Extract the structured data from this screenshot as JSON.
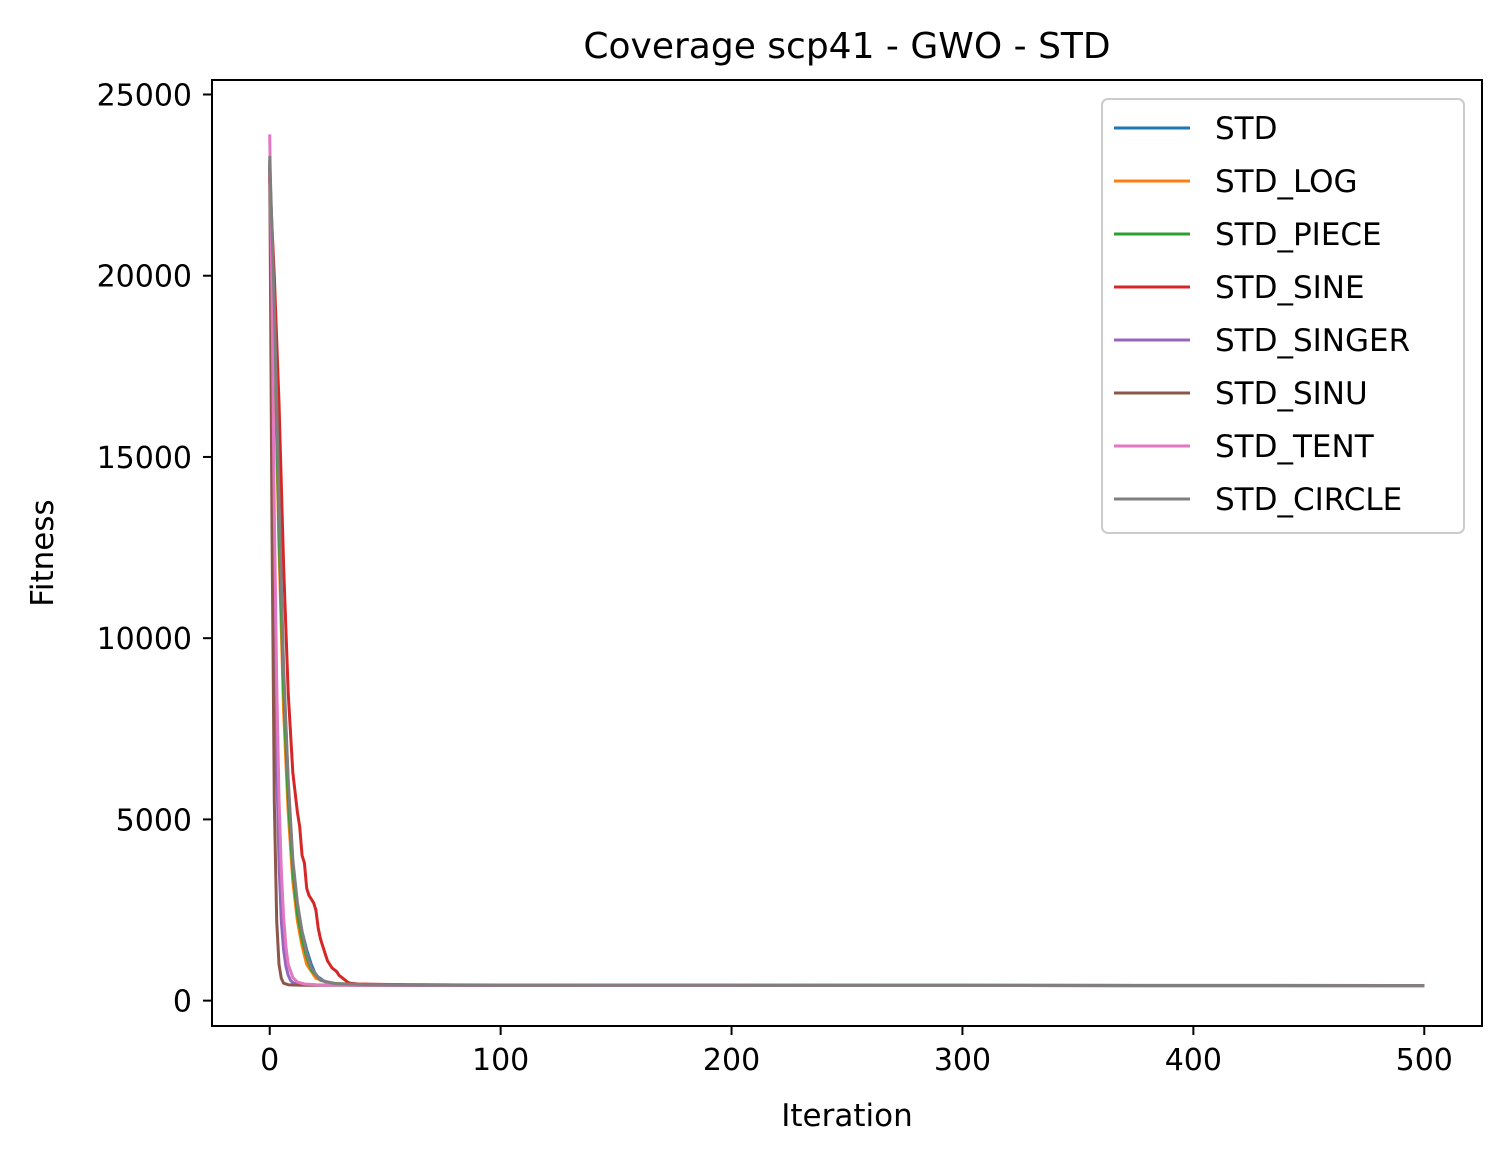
{
  "chart_data": {
    "type": "line",
    "title": "Coverage scp41 - GWO - STD",
    "xlabel": "Iteration",
    "ylabel": "Fitness",
    "xlim": [
      -25,
      525
    ],
    "ylim": [
      -700,
      25400
    ],
    "xticks": [
      0,
      100,
      200,
      300,
      400,
      500
    ],
    "yticks": [
      0,
      5000,
      10000,
      15000,
      20000,
      25000
    ],
    "legend_position": "top-right",
    "series": [
      {
        "name": "STD",
        "color": "#1f77b4",
        "x": [
          0,
          2,
          4,
          6,
          8,
          10,
          12,
          14,
          16,
          18,
          20,
          24,
          30,
          40,
          60,
          100,
          200,
          300,
          400,
          500
        ],
        "y": [
          23100,
          19000,
          13500,
          9000,
          6000,
          3800,
          2600,
          1900,
          1400,
          1000,
          700,
          520,
          460,
          440,
          430,
          425,
          420,
          418,
          416,
          415
        ]
      },
      {
        "name": "STD_LOG",
        "color": "#ff7f0e",
        "x": [
          0,
          2,
          4,
          6,
          8,
          10,
          12,
          14,
          16,
          20,
          26,
          35,
          60,
          100,
          200,
          300,
          400,
          500
        ],
        "y": [
          22900,
          18500,
          12500,
          8000,
          5200,
          3300,
          2200,
          1500,
          1000,
          620,
          480,
          450,
          435,
          428,
          422,
          420,
          418,
          417
        ]
      },
      {
        "name": "STD_PIECE",
        "color": "#2ca02c",
        "x": [
          0,
          2,
          4,
          6,
          8,
          10,
          12,
          14,
          16,
          18,
          22,
          28,
          40,
          60,
          100,
          200,
          300,
          400,
          500
        ],
        "y": [
          23000,
          18800,
          13000,
          8600,
          5600,
          3600,
          2400,
          1700,
          1200,
          850,
          560,
          470,
          445,
          435,
          428,
          422,
          419,
          417,
          416
        ]
      },
      {
        "name": "STD_SINE",
        "color": "#d62728",
        "x": [
          0,
          2,
          4,
          6,
          8,
          10,
          12,
          13,
          14,
          15,
          16,
          17,
          18,
          19,
          20,
          21,
          22,
          23,
          24,
          25,
          26,
          27,
          28,
          29,
          30,
          31,
          32,
          33,
          34,
          35,
          38,
          45,
          60,
          100,
          200,
          300,
          400,
          500
        ],
        "y": [
          22700,
          20000,
          16500,
          12000,
          8500,
          6300,
          5200,
          4800,
          4000,
          3800,
          3100,
          2900,
          2800,
          2700,
          2500,
          2000,
          1700,
          1500,
          1300,
          1100,
          1000,
          900,
          850,
          800,
          700,
          650,
          600,
          550,
          500,
          480,
          460,
          450,
          440,
          430,
          425,
          422,
          420,
          418
        ]
      },
      {
        "name": "STD_SINGER",
        "color": "#9467bd",
        "x": [
          0,
          1,
          2,
          3,
          4,
          5,
          6,
          7,
          8,
          9,
          10,
          12,
          15,
          20,
          30,
          60,
          100,
          200,
          300,
          400,
          500
        ],
        "y": [
          23000,
          17500,
          11000,
          6500,
          3800,
          2200,
          1400,
          950,
          700,
          560,
          500,
          460,
          445,
          435,
          430,
          425,
          422,
          420,
          418,
          416,
          415
        ]
      },
      {
        "name": "STD_SINU",
        "color": "#8c564b",
        "x": [
          0,
          1,
          2,
          3,
          4,
          5,
          6,
          8,
          10,
          15,
          30,
          60,
          100,
          200,
          300,
          400,
          500
        ],
        "y": [
          23200,
          13000,
          5500,
          2200,
          1000,
          620,
          480,
          440,
          430,
          425,
          422,
          420,
          419,
          418,
          417,
          416,
          415
        ]
      },
      {
        "name": "STD_TENT",
        "color": "#e377c2",
        "x": [
          0,
          1,
          2,
          3,
          4,
          5,
          6,
          7,
          8,
          10,
          12,
          15,
          20,
          30,
          60,
          100,
          200,
          300,
          400,
          500
        ],
        "y": [
          23900,
          19500,
          13500,
          8800,
          5600,
          3600,
          2300,
          1500,
          1000,
          640,
          510,
          460,
          440,
          432,
          426,
          423,
          420,
          418,
          416,
          415
        ]
      },
      {
        "name": "STD_CIRCLE",
        "color": "#7f7f7f",
        "x": [
          0,
          2,
          4,
          6,
          8,
          10,
          12,
          14,
          16,
          18,
          22,
          28,
          40,
          60,
          100,
          200,
          300,
          400,
          500
        ],
        "y": [
          23300,
          19200,
          13800,
          9200,
          6100,
          3900,
          2700,
          1900,
          1300,
          900,
          560,
          470,
          445,
          435,
          428,
          422,
          419,
          417,
          416
        ]
      }
    ]
  }
}
